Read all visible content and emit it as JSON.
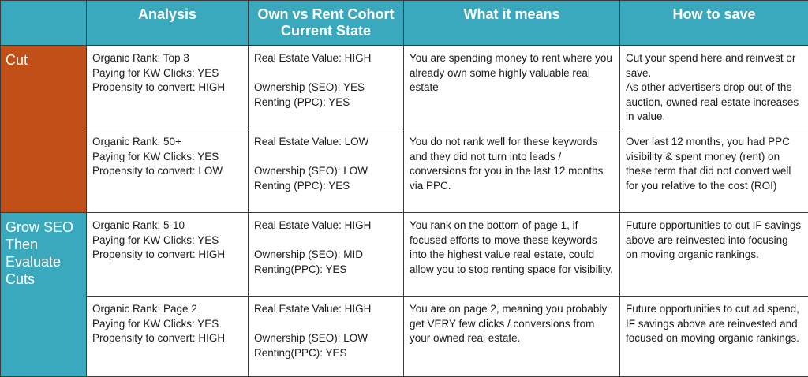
{
  "headers": {
    "analysis": "Analysis",
    "cohort": "Own vs Rent Cohort Current State",
    "means": "What it means",
    "save": "How to save"
  },
  "sections": {
    "cut": "Cut",
    "grow": "Grow SEO Then Evaluate Cuts"
  },
  "rows": [
    {
      "analysis": "Organic Rank: Top 3\nPaying for KW Clicks: YES\nPropensity to convert: HIGH",
      "cohort": "Real Estate Value: HIGH\n\nOwnership (SEO): YES\nRenting (PPC): YES",
      "means": "You are spending money to rent where you already own some highly valuable real estate",
      "save": "Cut your spend here and reinvest or save.\nAs other advertisers drop out of the auction, owned real estate increases in value."
    },
    {
      "analysis": "Organic Rank: 50+\nPaying for KW Clicks: YES\nPropensity to convert: LOW",
      "cohort": "Real Estate Value: LOW\n\nOwnership (SEO): LOW\nRenting (PPC): YES",
      "means": "You do not rank well for these keywords and they did not turn into leads / conversions for you in the last 12 months via PPC.",
      "save": "Over last 12 months, you had PPC visibility & spent money (rent) on these term that did not convert well for you relative to the cost (ROI)"
    },
    {
      "analysis": "Organic Rank: 5-10\nPaying for KW Clicks: YES\nPropensity to convert: HIGH",
      "cohort": "Real Estate Value: HIGH\n\nOwnership (SEO): MID\nRenting(PPC): YES",
      "means": "You rank on the bottom of page 1, if focused efforts to move these keywords into the highest value real estate, could allow you to stop renting space for visibility.",
      "save": "Future opportunities to cut IF savings above are reinvested into focusing on moving organic rankings."
    },
    {
      "analysis": "Organic Rank: Page 2\nPaying for KW Clicks: YES\nPropensity to convert: HIGH",
      "cohort": "Real Estate Value: HIGH\n\nOwnership (SEO): LOW\nRenting(PPC): YES",
      "means": "You are on page 2, meaning you probably get VERY few clicks / conversions from your owned real estate.",
      "save": "Future opportunities to cut ad spend, IF savings above are reinvested and focused on moving organic rankings."
    }
  ],
  "colors": {
    "header_bg": "#3aa9be",
    "cut_bg": "#c14f18",
    "grow_bg": "#3aa9be",
    "border": "#3a3a3a"
  }
}
